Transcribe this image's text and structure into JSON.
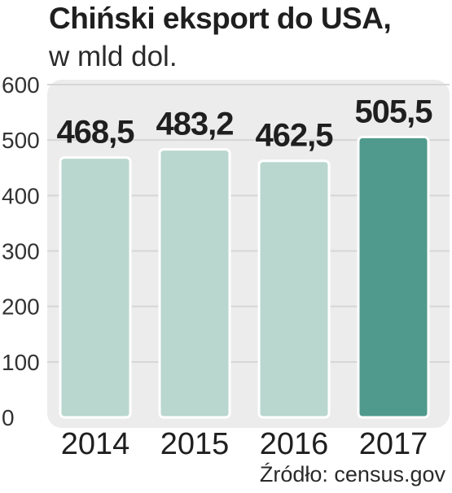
{
  "header": {
    "title": "Chiński eksport do USA,",
    "subtitle": "w mld dol."
  },
  "footer": {
    "source": "Źródło: census.gov"
  },
  "colors": {
    "panel": "#ececec",
    "grid": "#d6d6d6",
    "bar_default": "#b9d7cf",
    "bar_highlight": "#4f9a8c",
    "bar_outline": "#ffffff",
    "text": "#1f1f1f"
  },
  "chart_data": {
    "type": "bar",
    "title": "Chiński eksport do USA,",
    "subtitle": "w mld dol.",
    "xlabel": "",
    "ylabel": "",
    "categories": [
      "2014",
      "2015",
      "2016",
      "2017"
    ],
    "values": [
      468.5,
      483.2,
      462.5,
      505.5
    ],
    "value_labels": [
      "468,5",
      "483,2",
      "462,5",
      "505,5"
    ],
    "highlight_index": 3,
    "ylim": [
      0,
      600
    ],
    "yticks": [
      0,
      100,
      200,
      300,
      400,
      500,
      600
    ],
    "ytick_labels": [
      "0",
      "100",
      "200",
      "300",
      "400",
      "500",
      "600"
    ],
    "grid": true,
    "legend": "none"
  }
}
